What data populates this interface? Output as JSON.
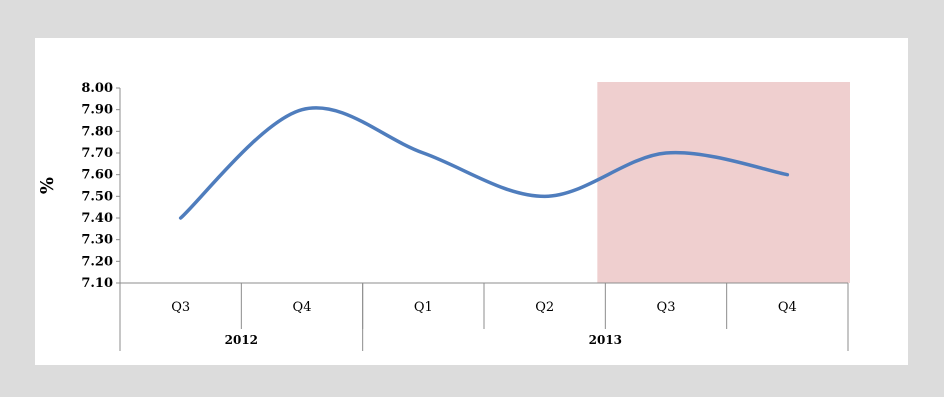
{
  "chart_data": {
    "type": "line",
    "ylabel": "%",
    "ylim": [
      7.1,
      8.0
    ],
    "y_ticks": [
      "8.00",
      "7.90",
      "7.80",
      "7.70",
      "7.60",
      "7.50",
      "7.40",
      "7.30",
      "7.20",
      "7.10"
    ],
    "categories": [
      "Q3",
      "Q4",
      "Q1",
      "Q2",
      "Q3",
      "Q4"
    ],
    "groups": [
      {
        "label": "2012",
        "span": 2
      },
      {
        "label": "2013",
        "span": 4
      }
    ],
    "series": [
      {
        "values": [
          7.4,
          7.9,
          7.7,
          7.5,
          7.7,
          7.6
        ]
      }
    ],
    "highlight": {
      "from_category_index": 4,
      "to_category_index": 5
    },
    "colors": {
      "line": "#4f7dbd",
      "highlight": "#efcfcf",
      "background": "#dcdcdc",
      "panel": "#ffffff"
    },
    "grid": false,
    "legend": "none"
  }
}
